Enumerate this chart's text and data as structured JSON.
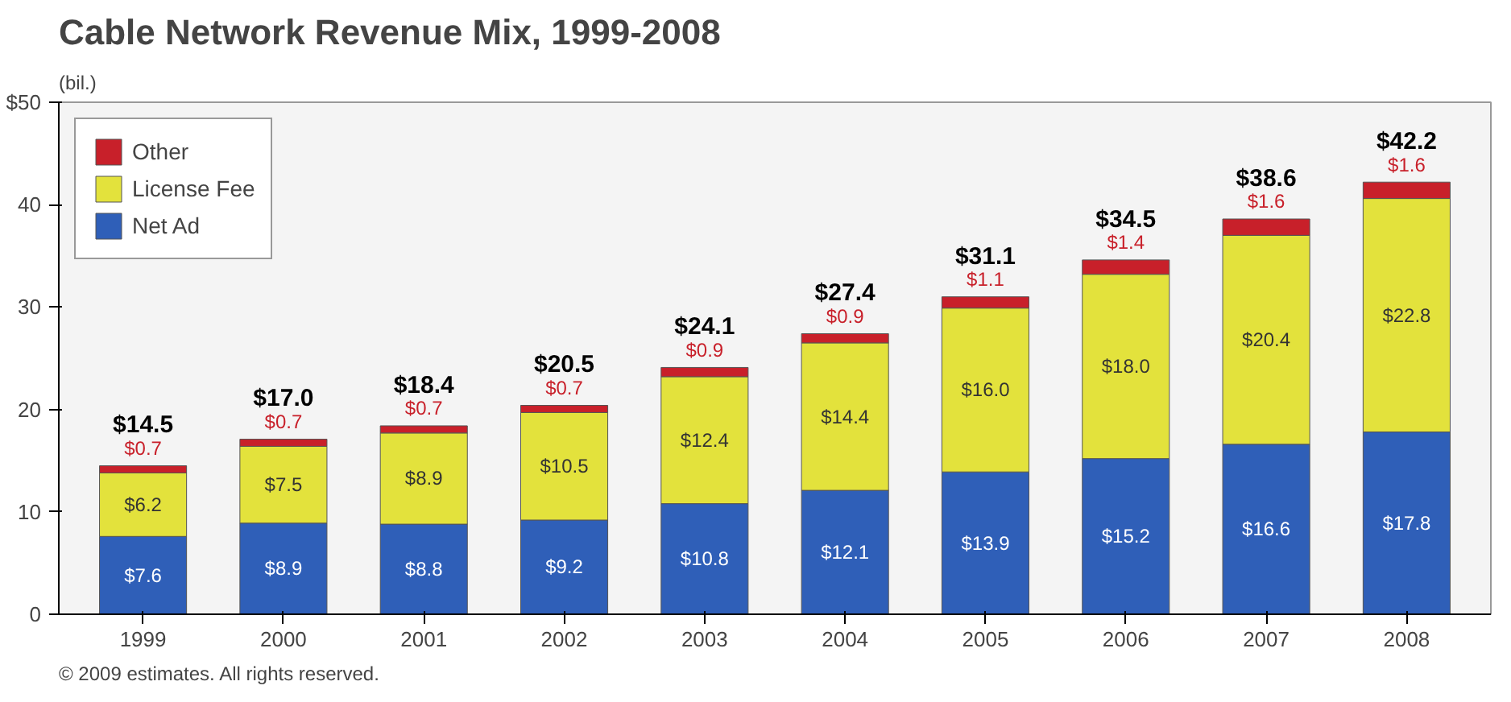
{
  "chart_data": {
    "type": "bar",
    "title": "Cable Network Revenue Mix, 1999-2008",
    "ylabel": "(bil.)",
    "categories": [
      "1999",
      "2000",
      "2001",
      "2002",
      "2003",
      "2004",
      "2005",
      "2006",
      "2007",
      "2008"
    ],
    "stacked": true,
    "series": [
      {
        "name": "Net Ad",
        "color": "#2f5fb8",
        "values": [
          7.6,
          8.9,
          8.8,
          9.2,
          10.8,
          12.1,
          13.9,
          15.2,
          16.6,
          17.8
        ],
        "value_labels": [
          "$7.6",
          "$8.9",
          "$8.8",
          "$9.2",
          "$10.8",
          "$12.1",
          "$13.9",
          "$15.2",
          "$16.6",
          "$17.8"
        ]
      },
      {
        "name": "License Fee",
        "color": "#e3e23c",
        "values": [
          6.2,
          7.5,
          8.9,
          10.5,
          12.4,
          14.4,
          16.0,
          18.0,
          20.4,
          22.8
        ],
        "value_labels": [
          "$6.2",
          "$7.5",
          "$8.9",
          "$10.5",
          "$12.4",
          "$14.4",
          "$16.0",
          "$18.0",
          "$20.4",
          "$22.8"
        ]
      },
      {
        "name": "Other",
        "color": "#c8202a",
        "values": [
          0.7,
          0.7,
          0.7,
          0.7,
          0.9,
          0.9,
          1.1,
          1.4,
          1.6,
          1.6
        ],
        "value_labels": [
          "$0.7",
          "$0.7",
          "$0.7",
          "$0.7",
          "$0.9",
          "$0.9",
          "$1.1",
          "$1.4",
          "$1.6",
          "$1.6"
        ]
      }
    ],
    "totals": [
      "$14.5",
      "$17.0",
      "$18.4",
      "$20.5",
      "$24.1",
      "$27.4",
      "$31.1",
      "$34.5",
      "$38.6",
      "$42.2"
    ],
    "ylim": [
      0,
      50
    ],
    "yticks": [
      0,
      10,
      20,
      30,
      40,
      {
        "value": 50,
        "label": "$50"
      }
    ],
    "grid": false,
    "legend": "top left",
    "annotations": [
      "© 2009 estimates. All rights reserved."
    ]
  }
}
